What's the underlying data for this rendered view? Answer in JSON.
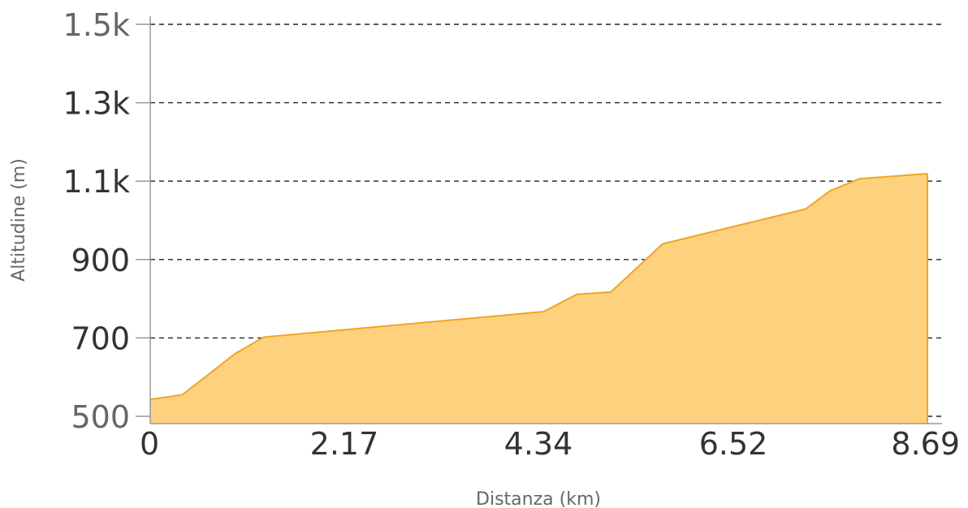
{
  "chart_data": {
    "type": "area",
    "xlabel": "Distanza (km)",
    "ylabel": "Altitudine (m)",
    "x_ticks": [
      "0",
      "2.17",
      "4.34",
      "6.52",
      "8.69"
    ],
    "x_tick_values": [
      0,
      2.17,
      4.34,
      6.52,
      8.69
    ],
    "y_ticks": [
      "500",
      "700",
      "900",
      "1.1k",
      "1.3k",
      "1.5k"
    ],
    "y_tick_values": [
      500,
      700,
      900,
      1100,
      1300,
      1500
    ],
    "xlim": [
      0,
      8.69
    ],
    "ylim": [
      480,
      1500
    ],
    "grid": true,
    "fill_color": "#fdd17e",
    "line_color": "#f0a526",
    "series": [
      {
        "x": [
          0,
          0.36,
          0.95,
          1.27,
          4.4,
          4.77,
          5.15,
          5.73,
          7.33,
          7.6,
          7.93,
          8.69
        ],
        "values": [
          543,
          555,
          660,
          702,
          767,
          811,
          817,
          940,
          1029,
          1075,
          1106,
          1119
        ]
      }
    ]
  }
}
